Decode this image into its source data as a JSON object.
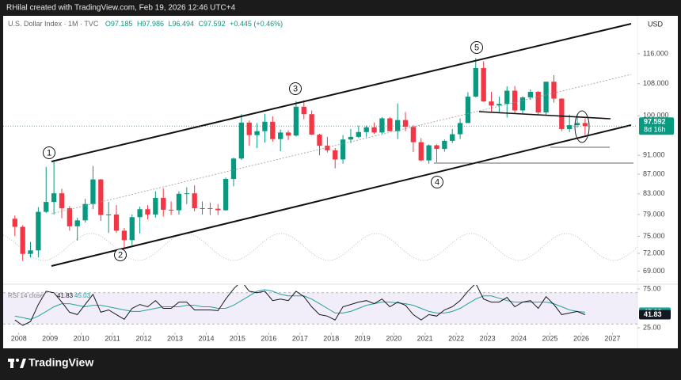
{
  "header": {
    "credit": "RHilal created with TradingView.com, Feb 19, 2026 12:46 UTC+4"
  },
  "footer": {
    "logo": "TradingView"
  },
  "chart_data": {
    "type": "candlestick",
    "title": "U.S. Dollar Index · 1M · TVC",
    "ohlc_text": [
      "O97.185",
      "H97.986",
      "L96.494",
      "C97.592",
      "+0.445 (+0.46%)"
    ],
    "currency": "USD",
    "last_price": 97.592,
    "countdown": "8d 16h",
    "wave_labels": [
      "1",
      "2",
      "3",
      "4",
      "5"
    ],
    "log_scale": true,
    "grid": false,
    "up_color": "#089981",
    "down_color": "#f23645",
    "xlim": [
      2007.5,
      2027.8
    ],
    "xticks": [
      2008,
      2009,
      2010,
      2011,
      2012,
      2013,
      2014,
      2015,
      2016,
      2017,
      2018,
      2019,
      2020,
      2021,
      2022,
      2023,
      2024,
      2025,
      2026,
      2027
    ],
    "ylim": [
      67,
      127
    ],
    "yticks": [
      {
        "value": 69,
        "label": "69.000"
      },
      {
        "value": 72,
        "label": "72.000"
      },
      {
        "value": 75,
        "label": "75.000"
      },
      {
        "value": 79,
        "label": "79.000"
      },
      {
        "value": 83,
        "label": "83.000"
      },
      {
        "value": 87,
        "label": "87.000"
      },
      {
        "value": 91,
        "label": "91.000"
      },
      {
        "value": 100,
        "label": "100.000"
      },
      {
        "value": 108,
        "label": "108.000"
      },
      {
        "value": 116,
        "label": "116.000"
      }
    ],
    "x": [
      2007.75,
      2008.0,
      2008.25,
      2008.5,
      2008.75,
      2009.0,
      2009.25,
      2009.5,
      2009.75,
      2010.0,
      2010.25,
      2010.5,
      2010.75,
      2011.0,
      2011.25,
      2011.5,
      2011.75,
      2012.0,
      2012.25,
      2012.5,
      2012.75,
      2013.0,
      2013.25,
      2013.5,
      2013.75,
      2014.0,
      2014.25,
      2014.5,
      2014.75,
      2015.0,
      2015.25,
      2015.5,
      2015.75,
      2016.0,
      2016.25,
      2016.5,
      2016.75,
      2017.0,
      2017.25,
      2017.5,
      2017.75,
      2018.0,
      2018.25,
      2018.5,
      2018.75,
      2019.0,
      2019.25,
      2019.5,
      2019.75,
      2020.0,
      2020.25,
      2020.5,
      2020.75,
      2021.0,
      2021.25,
      2021.5,
      2021.75,
      2022.0,
      2022.25,
      2022.5,
      2022.75,
      2023.0,
      2023.25,
      2023.5,
      2023.75,
      2024.0,
      2024.25,
      2024.5,
      2024.75,
      2025.0,
      2025.25,
      2025.5,
      2025.75,
      2026.0
    ],
    "open": [
      78.2,
      76.7,
      71.9,
      72.5,
      79.5,
      81.4,
      83.1,
      80.2,
      76.8,
      77.9,
      81.0,
      85.9,
      78.9,
      79.0,
      76.0,
      74.3,
      78.5,
      80.0,
      79.0,
      82.2,
      79.9,
      79.8,
      83.0,
      83.1,
      80.2,
      80.2,
      80.1,
      79.8,
      86.0,
      90.3,
      98.4,
      95.5,
      96.4,
      98.6,
      94.6,
      96.1,
      95.4,
      102.2,
      100.4,
      95.6,
      93.1,
      92.1,
      90.1,
      94.5,
      95.1,
      96.2,
      97.3,
      96.1,
      99.4,
      96.4,
      99.0,
      97.4,
      93.9,
      89.9,
      93.2,
      92.4,
      94.2,
      95.7,
      98.3,
      104.7,
      112.1,
      103.5,
      102.5,
      102.9,
      106.2,
      101.3,
      104.5,
      105.9,
      100.8,
      108.5,
      104.2,
      96.9,
      97.8,
      98.3
    ],
    "high": [
      78.8,
      77.0,
      74.0,
      80.4,
      88.5,
      89.6,
      84.0,
      80.6,
      78.4,
      82.0,
      88.7,
      86.0,
      81.4,
      80.8,
      76.5,
      79.0,
      80.5,
      80.8,
      83.5,
      84.1,
      81.5,
      83.5,
      84.3,
      84.7,
      81.5,
      81.3,
      81.0,
      86.3,
      90.5,
      100.4,
      98.9,
      98.3,
      100.5,
      99.9,
      96.8,
      96.6,
      103.6,
      103.8,
      101.3,
      95.8,
      95.1,
      92.6,
      95.5,
      96.9,
      97.7,
      97.7,
      98.4,
      99.7,
      99.7,
      103.0,
      100.9,
      97.8,
      94.8,
      93.4,
      93.4,
      94.5,
      96.9,
      99.4,
      105.8,
      114.8,
      113.9,
      105.9,
      104.7,
      107.3,
      107.4,
      104.8,
      106.5,
      106.1,
      108.5,
      110.2,
      104.3,
      100.3,
      100.4,
      99.4
    ],
    "low": [
      75.0,
      70.7,
      71.3,
      71.3,
      79.3,
      79.0,
      78.3,
      76.0,
      74.2,
      77.5,
      80.0,
      77.8,
      75.6,
      75.6,
      72.7,
      73.4,
      75.5,
      78.1,
      78.4,
      78.6,
      78.9,
      79.0,
      81.0,
      79.6,
      79.0,
      78.9,
      78.9,
      79.7,
      84.5,
      90.0,
      93.1,
      92.6,
      93.8,
      94.0,
      91.9,
      94.4,
      95.2,
      99.2,
      95.5,
      91.0,
      91.6,
      88.2,
      89.2,
      93.7,
      94.8,
      95.0,
      95.8,
      95.8,
      96.4,
      94.6,
      96.4,
      91.7,
      89.7,
      89.2,
      89.5,
      91.8,
      93.7,
      94.6,
      98.3,
      104.5,
      103.4,
      100.8,
      100.8,
      99.6,
      100.6,
      100.6,
      103.9,
      100.2,
      100.2,
      103.2,
      96.4,
      96.2,
      97.2,
      95.5
    ],
    "close": [
      76.7,
      71.9,
      72.5,
      79.5,
      81.4,
      83.1,
      80.2,
      76.8,
      77.9,
      81.0,
      85.9,
      78.9,
      79.0,
      76.0,
      74.3,
      78.5,
      80.0,
      79.0,
      82.2,
      79.9,
      79.8,
      83.0,
      83.1,
      80.2,
      80.2,
      80.1,
      79.8,
      86.0,
      90.3,
      98.4,
      95.5,
      96.4,
      98.6,
      94.6,
      96.1,
      95.4,
      102.2,
      100.4,
      95.6,
      93.1,
      92.1,
      90.1,
      94.5,
      95.1,
      96.2,
      97.3,
      96.1,
      99.4,
      96.4,
      99.0,
      97.4,
      93.9,
      89.9,
      93.2,
      92.4,
      94.2,
      95.7,
      98.3,
      104.7,
      112.1,
      103.5,
      102.5,
      102.9,
      106.2,
      101.3,
      104.5,
      105.9,
      100.8,
      108.5,
      104.2,
      96.9,
      97.8,
      98.3,
      97.592
    ],
    "rsi": {
      "name": "RSI 14 close",
      "color": "#131722",
      "ma_color": "#22a39a",
      "band_color": "#7e57c2",
      "ylim": [
        21,
        80
      ],
      "yticks": [
        {
          "value": 25,
          "label": "25.00"
        },
        {
          "value": 75,
          "label": "75.00"
        }
      ],
      "bands": [
        30,
        70
      ],
      "values": [
        35,
        28,
        33,
        55,
        72,
        70,
        58,
        45,
        42,
        55,
        68,
        45,
        48,
        42,
        36,
        50,
        55,
        52,
        60,
        50,
        50,
        58,
        58,
        48,
        48,
        48,
        47,
        62,
        75,
        85,
        72,
        70,
        72,
        60,
        62,
        60,
        72,
        65,
        52,
        42,
        40,
        35,
        52,
        55,
        58,
        60,
        56,
        62,
        52,
        58,
        54,
        42,
        35,
        42,
        40,
        48,
        52,
        60,
        72,
        82,
        62,
        58,
        58,
        64,
        52,
        58,
        60,
        50,
        65,
        55,
        42,
        44,
        46,
        41.83
      ],
      "ma_values": [
        40,
        38,
        36,
        40,
        46,
        52,
        56,
        56,
        54,
        52,
        54,
        54,
        52,
        50,
        48,
        46,
        46,
        48,
        50,
        52,
        52,
        52,
        54,
        54,
        52,
        52,
        50,
        50,
        54,
        60,
        66,
        72,
        74,
        72,
        68,
        66,
        66,
        66,
        62,
        56,
        50,
        44,
        44,
        46,
        50,
        54,
        56,
        58,
        58,
        57,
        56,
        54,
        50,
        46,
        44,
        44,
        46,
        50,
        56,
        62,
        66,
        66,
        63,
        60,
        58,
        58,
        58,
        58,
        58,
        56,
        52,
        48,
        46,
        45.03
      ]
    }
  }
}
